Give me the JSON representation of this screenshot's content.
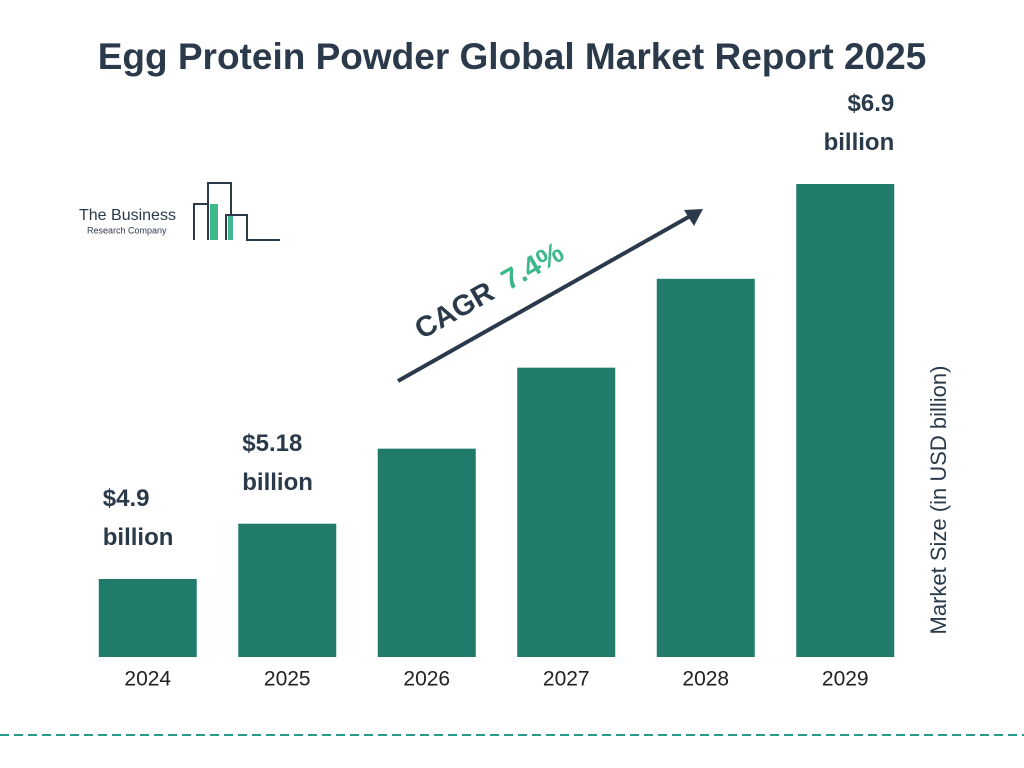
{
  "chart_data": {
    "type": "bar",
    "title": "Egg Protein Powder Global Market Report 2025",
    "categories": [
      "2024",
      "2025",
      "2026",
      "2027",
      "2028",
      "2029"
    ],
    "values": [
      4.9,
      5.18,
      5.56,
      5.97,
      6.42,
      6.9
    ],
    "value_labels": [
      "$4.9 billion",
      "$5.18 billion",
      null,
      null,
      null,
      "$6.9 billion"
    ],
    "color": "#217b6b",
    "y_label": "Market Size (in USD billion)",
    "cagr_label": "CAGR",
    "cagr_value": "7.4%",
    "logo": {
      "line1": "The Business",
      "line2": "Research Company"
    }
  }
}
